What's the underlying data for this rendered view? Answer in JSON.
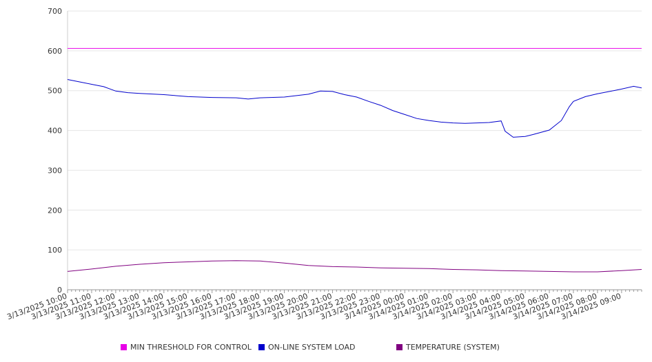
{
  "chart_data": {
    "type": "line",
    "title": "",
    "xlabel": "",
    "ylabel": "",
    "ylim": [
      0,
      700
    ],
    "yticks": [
      0,
      100,
      200,
      300,
      400,
      500,
      600,
      700
    ],
    "grid": "horizontal",
    "legend_position": "bottom",
    "x_ticks": [
      "3/13/2025 10:00",
      "3/13/2025 11:00",
      "3/13/2025 12:00",
      "3/13/2025 13:00",
      "3/13/2025 14:00",
      "3/13/2025 15:00",
      "3/13/2025 16:00",
      "3/13/2025 17:00",
      "3/13/2025 18:00",
      "3/13/2025 19:00",
      "3/13/2025 20:00",
      "3/13/2025 21:00",
      "3/13/2025 22:00",
      "3/13/2025 23:00",
      "3/14/2025 00:00",
      "3/14/2025 01:00",
      "3/14/2025 02:00",
      "3/14/2025 03:00",
      "3/14/2025 04:00",
      "3/14/2025 05:00",
      "3/14/2025 06:00",
      "3/14/2025 07:00",
      "3/14/2025 08:00",
      "3/14/2025 09:00"
    ],
    "x_range": [
      "3/13/2025 10:00",
      "3/14/2025 09:50"
    ],
    "series": [
      {
        "name": "MIN THRESHOLD FOR CONTROL",
        "color": "#e800e8",
        "points": [
          [
            "3/13/2025 10:00",
            606
          ],
          [
            "3/14/2025 09:50",
            606
          ]
        ]
      },
      {
        "name": "ON-LINE SYSTEM LOAD",
        "color": "#0000cc",
        "points": [
          [
            "3/13/2025 10:00",
            528
          ],
          [
            "3/13/2025 10:30",
            522
          ],
          [
            "3/13/2025 11:00",
            516
          ],
          [
            "3/13/2025 11:30",
            510
          ],
          [
            "3/13/2025 12:00",
            499
          ],
          [
            "3/13/2025 12:30",
            495
          ],
          [
            "3/13/2025 13:00",
            493
          ],
          [
            "3/13/2025 14:00",
            490
          ],
          [
            "3/13/2025 15:00",
            485
          ],
          [
            "3/13/2025 16:00",
            483
          ],
          [
            "3/13/2025 17:00",
            482
          ],
          [
            "3/13/2025 17:30",
            479
          ],
          [
            "3/13/2025 18:00",
            482
          ],
          [
            "3/13/2025 19:00",
            484
          ],
          [
            "3/13/2025 20:00",
            491
          ],
          [
            "3/13/2025 20:30",
            499
          ],
          [
            "3/13/2025 21:00",
            498
          ],
          [
            "3/13/2025 21:30",
            490
          ],
          [
            "3/13/2025 22:00",
            484
          ],
          [
            "3/13/2025 22:30",
            473
          ],
          [
            "3/13/2025 23:00",
            463
          ],
          [
            "3/13/2025 23:30",
            450
          ],
          [
            "3/14/2025 00:00",
            440
          ],
          [
            "3/14/2025 00:30",
            430
          ],
          [
            "3/14/2025 01:00",
            425
          ],
          [
            "3/14/2025 01:30",
            421
          ],
          [
            "3/14/2025 02:00",
            419
          ],
          [
            "3/14/2025 02:30",
            418
          ],
          [
            "3/14/2025 03:00",
            419
          ],
          [
            "3/14/2025 03:30",
            420
          ],
          [
            "3/14/2025 04:00",
            424
          ],
          [
            "3/14/2025 04:10",
            398
          ],
          [
            "3/14/2025 04:30",
            383
          ],
          [
            "3/14/2025 05:00",
            385
          ],
          [
            "3/14/2025 05:20",
            390
          ],
          [
            "3/14/2025 06:00",
            401
          ],
          [
            "3/14/2025 06:30",
            425
          ],
          [
            "3/14/2025 06:50",
            460
          ],
          [
            "3/14/2025 07:00",
            473
          ],
          [
            "3/14/2025 07:30",
            485
          ],
          [
            "3/14/2025 08:00",
            492
          ],
          [
            "3/14/2025 08:30",
            498
          ],
          [
            "3/14/2025 09:00",
            504
          ],
          [
            "3/14/2025 09:30",
            511
          ],
          [
            "3/14/2025 09:50",
            507
          ]
        ]
      },
      {
        "name": "TEMPERATURE (SYSTEM)",
        "color": "#800080",
        "points": [
          [
            "3/13/2025 10:00",
            46
          ],
          [
            "3/13/2025 11:00",
            52
          ],
          [
            "3/13/2025 12:00",
            59
          ],
          [
            "3/13/2025 13:00",
            64
          ],
          [
            "3/13/2025 14:00",
            68
          ],
          [
            "3/13/2025 15:00",
            70
          ],
          [
            "3/13/2025 16:00",
            72
          ],
          [
            "3/13/2025 17:00",
            73
          ],
          [
            "3/13/2025 18:00",
            72
          ],
          [
            "3/13/2025 19:00",
            67
          ],
          [
            "3/13/2025 20:00",
            61
          ],
          [
            "3/13/2025 21:00",
            58
          ],
          [
            "3/13/2025 22:00",
            57
          ],
          [
            "3/13/2025 23:00",
            55
          ],
          [
            "3/14/2025 00:00",
            54
          ],
          [
            "3/14/2025 01:00",
            53
          ],
          [
            "3/14/2025 02:00",
            51
          ],
          [
            "3/14/2025 03:00",
            50
          ],
          [
            "3/14/2025 04:00",
            48
          ],
          [
            "3/14/2025 05:00",
            47
          ],
          [
            "3/14/2025 06:00",
            46
          ],
          [
            "3/14/2025 07:00",
            45
          ],
          [
            "3/14/2025 08:00",
            45
          ],
          [
            "3/14/2025 09:00",
            48
          ],
          [
            "3/14/2025 09:50",
            51
          ]
        ]
      }
    ]
  }
}
